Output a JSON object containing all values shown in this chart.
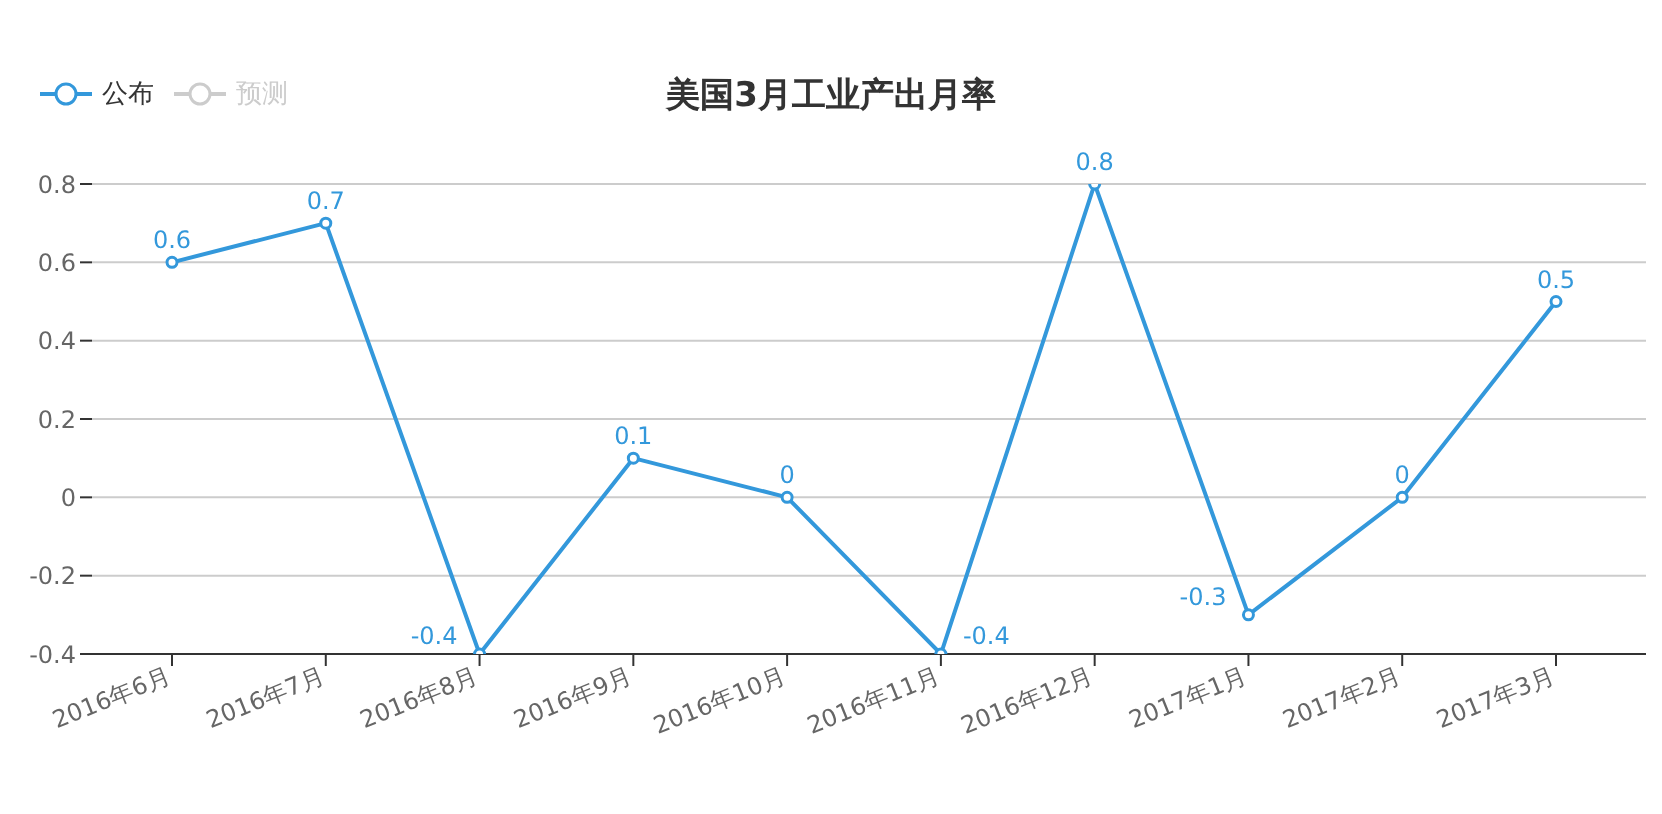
{
  "chart_data": {
    "type": "line",
    "title": "美国3月工业产出月率",
    "categories": [
      "2016年6月",
      "2016年7月",
      "2016年8月",
      "2016年9月",
      "2016年10月",
      "2016年11月",
      "2016年12月",
      "2017年1月",
      "2017年2月",
      "2017年3月"
    ],
    "series": [
      {
        "name": "公布",
        "color": "#3398db",
        "values": [
          0.6,
          0.7,
          -0.4,
          0.1,
          0,
          -0.4,
          0.8,
          -0.3,
          0,
          0.5
        ]
      },
      {
        "name": "预测",
        "color": "#cccccc",
        "values": [
          null,
          null,
          null,
          null,
          null,
          null,
          null,
          null,
          null,
          null
        ]
      }
    ],
    "ylim": [
      -0.4,
      0.8
    ],
    "yticks": [
      -0.4,
      -0.2,
      0,
      0.2,
      0.4,
      0.6,
      0.8
    ],
    "grid": "y",
    "legend": "top left",
    "marker": "circle",
    "data_labels": true
  }
}
